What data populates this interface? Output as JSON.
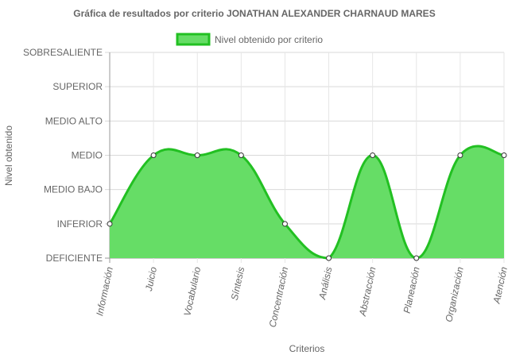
{
  "chart_data": {
    "type": "area",
    "title": "Gráfica de resultados por criterio JONATHAN ALEXANDER CHARNAUD MARES",
    "xlabel": "Criterios",
    "ylabel": "Nivel obtenido",
    "y_levels": [
      "DEFICIENTE",
      "INFERIOR",
      "MEDIO BAJO",
      "MEDIO",
      "MEDIO ALTO",
      "SUPERIOR",
      "SOBRESALIENTE"
    ],
    "categories": [
      "Información",
      "Juicio",
      "Vocabulario",
      "Síntesis",
      "Concentración",
      "Análisis",
      "Abstracción",
      "Planeación",
      "Organización",
      "Atención"
    ],
    "series": [
      {
        "name": "Nivel obtenido por criterio",
        "values": [
          "INFERIOR",
          "MEDIO",
          "MEDIO",
          "MEDIO",
          "INFERIOR",
          "DEFICIENTE",
          "MEDIO",
          "DEFICIENTE",
          "MEDIO",
          "MEDIO"
        ],
        "fill": "#66dd66",
        "stroke": "#22c022"
      }
    ],
    "grid": true,
    "legend": "top"
  }
}
